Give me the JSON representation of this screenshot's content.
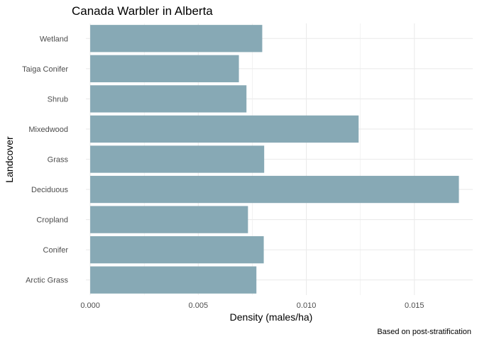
{
  "chart_data": {
    "type": "bar",
    "orientation": "horizontal",
    "title": "Canada Warbler in Alberta",
    "xlabel": "Density (males/ha)",
    "ylabel": "Landcover",
    "caption": "Based on post-stratification",
    "categories": [
      "Wetland",
      "Taiga Conifer",
      "Shrub",
      "Mixedwood",
      "Grass",
      "Deciduous",
      "Cropland",
      "Conifer",
      "Arctic Grass"
    ],
    "values": [
      0.00796,
      0.00688,
      0.00723,
      0.01242,
      0.00805,
      0.01706,
      0.0073,
      0.00803,
      0.00769
    ],
    "x_ticks": [
      0.0,
      0.005,
      0.01,
      0.015
    ],
    "x_tick_labels": [
      "0.000",
      "0.005",
      "0.010",
      "0.015"
    ],
    "xlim": [
      -0.0002,
      0.0177
    ],
    "grid": true,
    "bar_color": "#87a9b5",
    "grid_color": "#ebebeb"
  }
}
